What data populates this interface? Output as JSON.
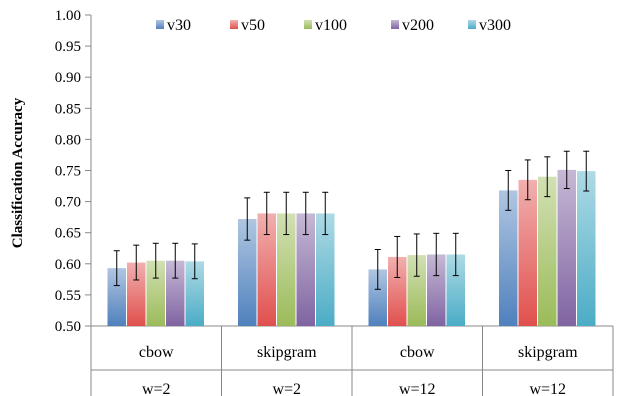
{
  "chart_data": {
    "type": "bar",
    "ylabel": "Classification Accuracy",
    "xlabel": "",
    "ylim": [
      0.5,
      1.0
    ],
    "yticks": [
      "0.50",
      "0.55",
      "0.60",
      "0.65",
      "0.70",
      "0.75",
      "0.80",
      "0.85",
      "0.90",
      "0.95",
      "1.00"
    ],
    "grid": false,
    "legend_position": "top",
    "categories": [
      {
        "model": "cbow",
        "window": "w=2"
      },
      {
        "model": "skipgram",
        "window": "w=2"
      },
      {
        "model": "cbow",
        "window": "w=12"
      },
      {
        "model": "skipgram",
        "window": "w=12"
      }
    ],
    "series": [
      {
        "name": "v30",
        "color": "#4f81bd",
        "values": [
          0.593,
          0.672,
          0.591,
          0.718
        ],
        "errors": [
          0.028,
          0.034,
          0.032,
          0.032
        ]
      },
      {
        "name": "v50",
        "color": "#e0504d",
        "values": [
          0.602,
          0.681,
          0.611,
          0.735
        ],
        "errors": [
          0.028,
          0.034,
          0.033,
          0.032
        ]
      },
      {
        "name": "v100",
        "color": "#9bbb59",
        "values": [
          0.605,
          0.681,
          0.614,
          0.74
        ],
        "errors": [
          0.028,
          0.034,
          0.034,
          0.032
        ]
      },
      {
        "name": "v200",
        "color": "#8064a2",
        "values": [
          0.605,
          0.681,
          0.615,
          0.751
        ],
        "errors": [
          0.028,
          0.034,
          0.034,
          0.03
        ]
      },
      {
        "name": "v300",
        "color": "#4bacc6",
        "values": [
          0.604,
          0.681,
          0.615,
          0.749
        ],
        "errors": [
          0.028,
          0.034,
          0.034,
          0.032
        ]
      }
    ]
  }
}
